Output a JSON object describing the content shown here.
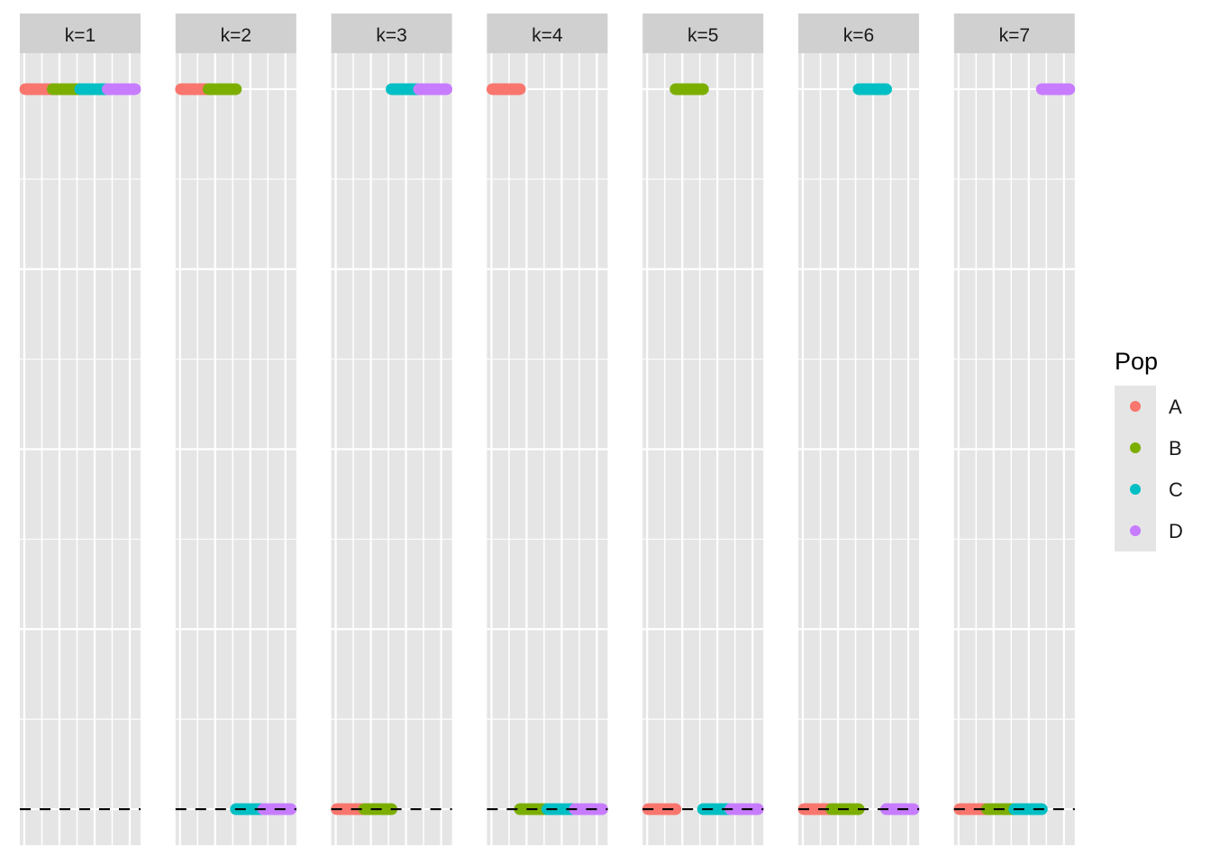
{
  "chart_data": {
    "type": "line",
    "facet_var": "k",
    "facets": [
      "k=1",
      "k=2",
      "k=3",
      "k=4",
      "k=5",
      "k=6",
      "k=7"
    ],
    "legend": {
      "title": "Pop",
      "placement": "right",
      "entries": [
        {
          "name": "A",
          "color": "#F8766D"
        },
        {
          "name": "B",
          "color": "#7CAE00"
        },
        {
          "name": "C",
          "color": "#00BFC4"
        },
        {
          "name": "D",
          "color": "#C77CFF"
        }
      ]
    },
    "pop_x_ranges": {
      "A": [
        0,
        1
      ],
      "B": [
        1,
        2
      ],
      "C": [
        2,
        3
      ],
      "D": [
        3,
        4
      ]
    },
    "xlim": [
      0,
      4
    ],
    "ylim": [
      0,
      1
    ],
    "reference_line": {
      "y": 0,
      "style": "dashed",
      "color": "#000000"
    },
    "panels": [
      {
        "facet": "k=1",
        "values": {
          "A": 1,
          "B": 1,
          "C": 1,
          "D": 1
        }
      },
      {
        "facet": "k=2",
        "values": {
          "A": 1,
          "B": 1,
          "C": 0,
          "D": 0
        }
      },
      {
        "facet": "k=3",
        "values": {
          "A": 0,
          "B": 0,
          "C": 1,
          "D": 1
        }
      },
      {
        "facet": "k=4",
        "values": {
          "A": 1,
          "B": 0,
          "C": 0,
          "D": 0
        }
      },
      {
        "facet": "k=5",
        "values": {
          "A": 0,
          "B": 1,
          "C": 0,
          "D": 0
        }
      },
      {
        "facet": "k=6",
        "values": {
          "A": 0,
          "B": 0,
          "C": 1,
          "D": 0
        }
      },
      {
        "facet": "k=7",
        "values": {
          "A": 0,
          "B": 0,
          "C": 0,
          "D": 1
        }
      }
    ],
    "grid": true,
    "axis_ticks_shown": false,
    "colors": {
      "panel": "#E5E5E5",
      "strip": "#D0D0D0",
      "grid": "#FFFFFF"
    }
  }
}
